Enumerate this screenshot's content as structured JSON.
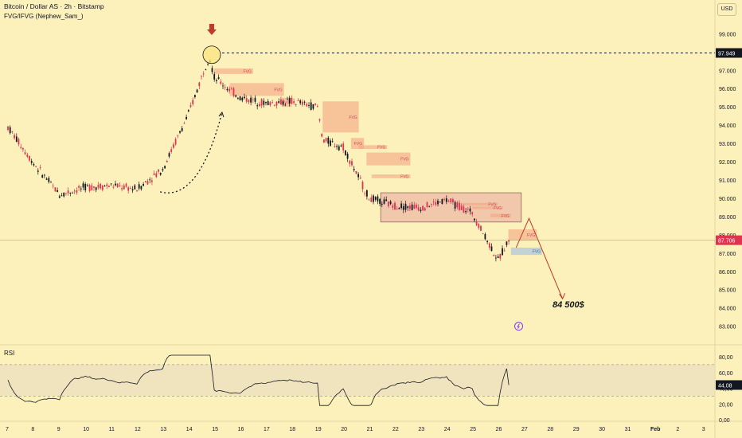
{
  "header": {
    "title": "Bitcoin / Dollar AS · 2h · Bitstamp",
    "indicator": "FVG/IFVG (Nephew_Sam_)",
    "currency": "USD",
    "rsi_label": "RSI"
  },
  "annotations": {
    "target_label": "84 500$",
    "fvg_label": "FVG",
    "resistance_value": "97.949",
    "last_price": "87.706",
    "rsi_last": "44,08"
  },
  "colors": {
    "background": "#fcf0bb",
    "bull": "#131722",
    "bear": "#e0334f",
    "fvg_fill": "#f4a582",
    "ifvg_fill": "#a9c4e0",
    "box_fill": "#e7a8a0",
    "arrow": "#c0392b"
  },
  "chart_data": [
    {
      "type": "candlestick",
      "title": "Bitcoin / Dollar AS · 2h · Bitstamp",
      "y_unit": "USD",
      "ylim": [
        82200,
        99800
      ],
      "x_ticks": [
        "7",
        "8",
        "9",
        "10",
        "11",
        "12",
        "13",
        "14",
        "15",
        "16",
        "17",
        "18",
        "19",
        "20",
        "21",
        "22",
        "23",
        "24",
        "25",
        "26",
        "27",
        "28",
        "29",
        "30",
        "31",
        "Feb",
        "2",
        "3"
      ],
      "y_ticks": [
        "99.000",
        "98.000",
        "97.000",
        "96.000",
        "95.000",
        "94.000",
        "93.000",
        "92.000",
        "91.000",
        "90.000",
        "89.000",
        "88.000",
        "87.000",
        "86.000",
        "85.000",
        "84.000",
        "83.000"
      ],
      "close_path": [
        {
          "x": "Jan 7",
          "y": 93900
        },
        {
          "x": "Jan 8",
          "y": 91900
        },
        {
          "x": "Jan 9",
          "y": 90200
        },
        {
          "x": "Jan 10",
          "y": 90600
        },
        {
          "x": "Jan 11",
          "y": 90700
        },
        {
          "x": "Jan 12",
          "y": 90500
        },
        {
          "x": "Jan 13",
          "y": 91600
        },
        {
          "x": "Jan 14",
          "y": 94600
        },
        {
          "x": "Jan 14.8",
          "y": 97800
        },
        {
          "x": "Jan 15",
          "y": 96600
        },
        {
          "x": "Jan 16",
          "y": 95500
        },
        {
          "x": "Jan 17",
          "y": 95200
        },
        {
          "x": "Jan 18",
          "y": 95300
        },
        {
          "x": "Jan 19",
          "y": 95000
        },
        {
          "x": "Jan 19.2",
          "y": 93200
        },
        {
          "x": "Jan 20",
          "y": 92800
        },
        {
          "x": "Jan 21",
          "y": 90000
        },
        {
          "x": "Jan 22",
          "y": 89600
        },
        {
          "x": "Jan 23",
          "y": 89500
        },
        {
          "x": "Jan 24",
          "y": 89900
        },
        {
          "x": "Jan 25",
          "y": 89200
        },
        {
          "x": "Jan 26",
          "y": 86600
        },
        {
          "x": "Jan 26.4",
          "y": 87700
        }
      ],
      "resistance": 97949,
      "last_price": 87706,
      "consolidation_box": [
        88700,
        90300
      ],
      "projection": [
        {
          "x": "Jan 26.7",
          "y": 87300
        },
        {
          "x": "Jan 27.2",
          "y": 88900
        },
        {
          "x": "Jan 28.5",
          "y": 84500
        }
      ],
      "target": 84500
    },
    {
      "type": "line",
      "title": "RSI",
      "ylim": [
        0,
        80
      ],
      "y_ticks": [
        "80,00",
        "60,00",
        "40,00",
        "20,00",
        "0,00"
      ],
      "bands": [
        70,
        30
      ],
      "last_value": 44.08
    }
  ]
}
